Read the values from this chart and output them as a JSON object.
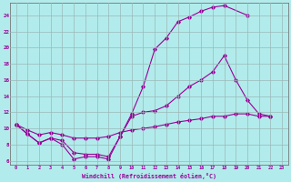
{
  "xlabel": "Windchill (Refroidissement éolien,°C)",
  "bg_color": "#b2ebeb",
  "line_color": "#990099",
  "grid_color": "#9ab8b8",
  "xlim": [
    -0.5,
    23.5
  ],
  "ylim": [
    5.5,
    25.5
  ],
  "yticks": [
    6,
    8,
    10,
    12,
    14,
    16,
    18,
    20,
    22,
    24
  ],
  "xticks": [
    0,
    1,
    2,
    3,
    4,
    5,
    6,
    7,
    8,
    9,
    10,
    11,
    12,
    13,
    14,
    15,
    16,
    17,
    18,
    19,
    20,
    21,
    22,
    23
  ],
  "series": [
    {
      "x": [
        0,
        1,
        2,
        3,
        4,
        5,
        6,
        7,
        8,
        9,
        10,
        11,
        12,
        13,
        14,
        15,
        16,
        17,
        18,
        20
      ],
      "y": [
        10.5,
        9.3,
        8.2,
        8.8,
        8.0,
        6.2,
        6.5,
        6.5,
        6.2,
        9.0,
        11.8,
        15.2,
        19.8,
        21.2,
        23.2,
        23.8,
        24.5,
        25.0,
        25.2,
        24.0
      ]
    },
    {
      "x": [
        0,
        1,
        2,
        3,
        4,
        5,
        6,
        7,
        8,
        9,
        10,
        11,
        12,
        13,
        14,
        15,
        16,
        17,
        18,
        19,
        20,
        21,
        22
      ],
      "y": [
        10.5,
        9.3,
        8.2,
        8.8,
        8.5,
        7.0,
        6.8,
        6.8,
        6.5,
        9.0,
        11.5,
        12.0,
        12.2,
        12.8,
        14.0,
        15.2,
        16.0,
        17.0,
        19.0,
        16.0,
        13.5,
        11.8,
        11.5
      ]
    },
    {
      "x": [
        0,
        1,
        2,
        3,
        4,
        5,
        6,
        7,
        8,
        9,
        10,
        11,
        12,
        13,
        14,
        15,
        16,
        17,
        18,
        19,
        20,
        21,
        22
      ],
      "y": [
        10.5,
        9.8,
        9.2,
        9.5,
        9.2,
        8.8,
        8.8,
        8.8,
        9.0,
        9.5,
        9.8,
        10.0,
        10.2,
        10.5,
        10.8,
        11.0,
        11.2,
        11.5,
        11.5,
        11.8,
        11.8,
        11.5,
        11.5
      ]
    }
  ]
}
